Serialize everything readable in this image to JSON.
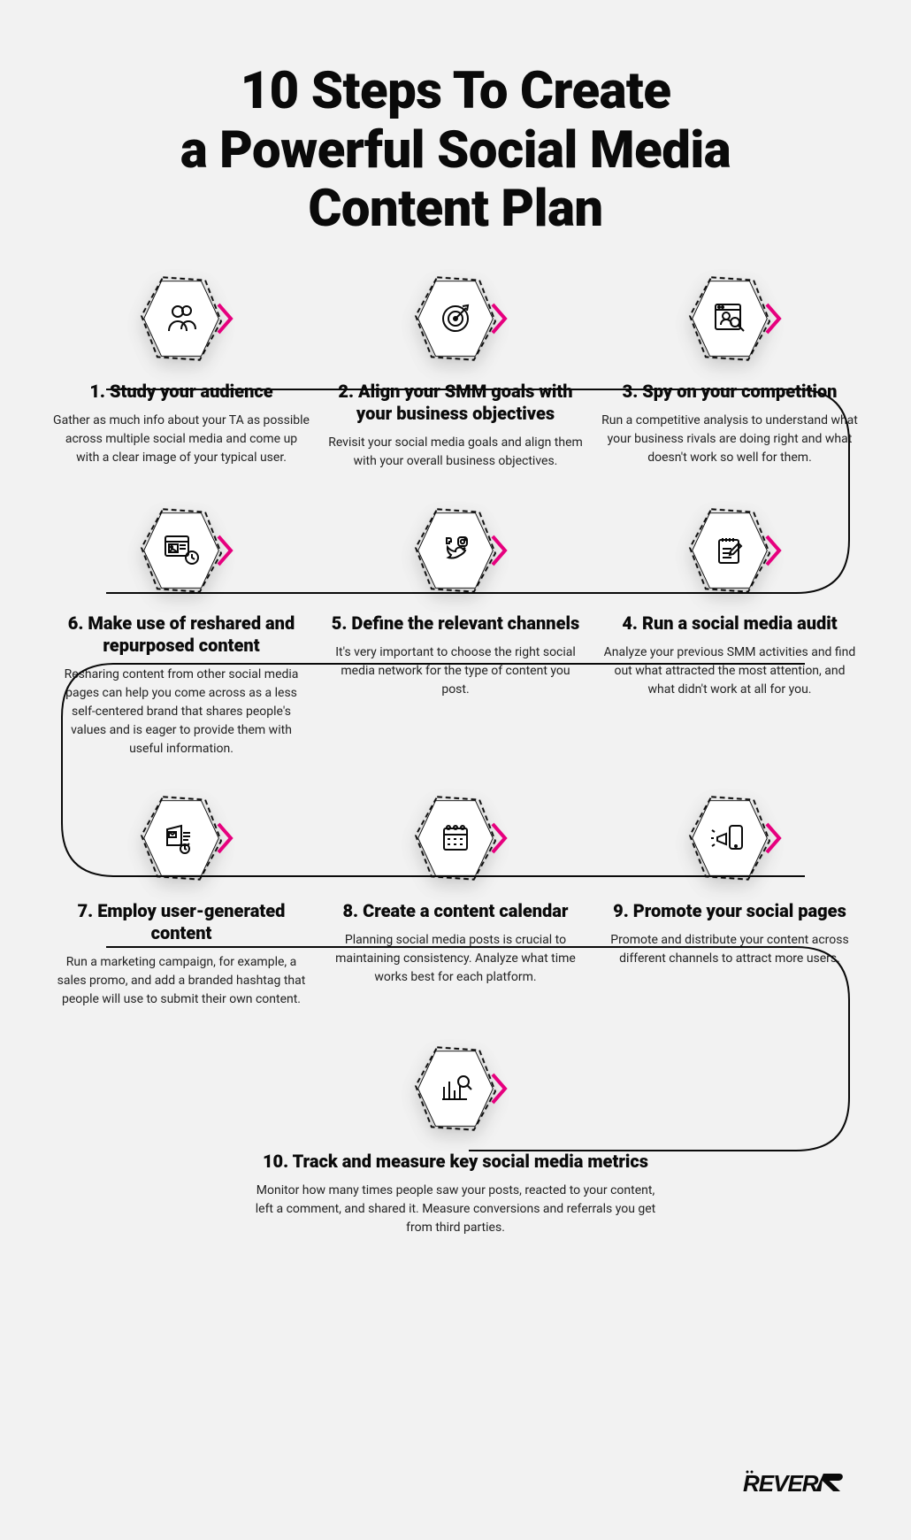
{
  "title": "10 Steps To Create\na Powerful Social Media\nContent Plan",
  "colors": {
    "bg": "#f2f2f2",
    "text": "#0a0a0a",
    "accent": "#e6007e",
    "hex_fill": "#ffffff",
    "hex_stroke": "#0a0a0a",
    "body_text": "#222222"
  },
  "logo": "REVERB",
  "steps": [
    {
      "n": "1",
      "title": "1. Study your audience",
      "body": "Gather as much info about your TA as possible across multiple social media and come up with a clear image of your typical user.",
      "icon": "people"
    },
    {
      "n": "2",
      "title": "2. Align your SMM goals with your business objectives",
      "body": "Revisit your social media goals and align them with your overall business objectives.",
      "icon": "target"
    },
    {
      "n": "3",
      "title": "3. Spy on your competition",
      "body": "Run a competitive analysis to understand what your business rivals are doing right and what doesn't work so well for them.",
      "icon": "spy"
    },
    {
      "n": "6",
      "title": "6. Make use of reshared and repurposed content",
      "body": "Resharing content from other social media pages can help you come across as a less self-centered brand that shares people's values and is eager to provide them with useful information.",
      "icon": "reshare"
    },
    {
      "n": "5",
      "title": "5. Define the relevant channels",
      "body": "It's very important to choose the right social media network for the type of content you post.",
      "icon": "channels"
    },
    {
      "n": "4",
      "title": "4. Run a social media audit",
      "body": "Analyze your previous SMM activities and find out what attracted the most attention, and what didn't work at all for you.",
      "icon": "audit"
    },
    {
      "n": "7",
      "title": "7. Employ user-generated content",
      "body": "Run a marketing campaign, for example, a sales promo, and add a branded hashtag that people will use to submit their own content.",
      "icon": "ugc"
    },
    {
      "n": "8",
      "title": "8. Create a content calendar",
      "body": "Planning social media posts is crucial to maintaining consistency. Analyze what time works best for each platform.",
      "icon": "calendar"
    },
    {
      "n": "9",
      "title": "9. Promote your social pages",
      "body": "Promote and distribute your content across different channels to attract more users.",
      "icon": "promote"
    },
    {
      "n": "10",
      "title": "10. Track and measure key social media metrics",
      "body": "Monitor how many times people saw your posts, reacted to your content, left a comment, and shared it. Measure conversions and referrals you get from third parties.",
      "icon": "metrics"
    }
  ],
  "layout": {
    "rows": [
      [
        0,
        1,
        2
      ],
      [
        3,
        4,
        5
      ],
      [
        6,
        7,
        8
      ],
      [
        9
      ]
    ]
  },
  "style": {
    "title_fontsize": 58,
    "title_weight": 900,
    "step_title_fontsize": 20,
    "step_body_fontsize": 14,
    "hex_size": 90,
    "chev_color": "#e6007e",
    "chev_stroke_width": 4,
    "icon_stroke": "#0a0a0a",
    "icon_stroke_width": 2
  }
}
